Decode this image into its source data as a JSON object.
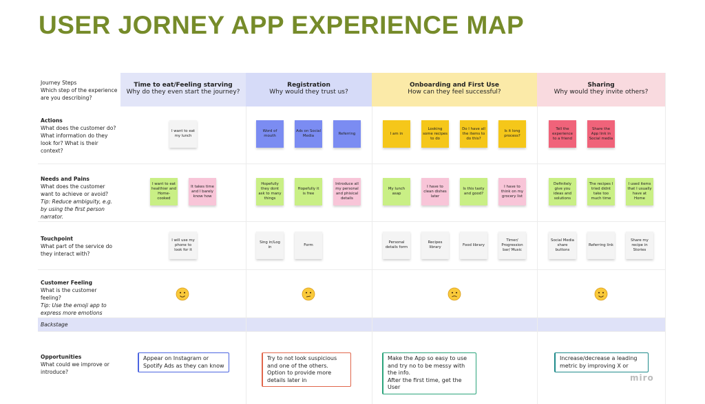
{
  "header": {
    "title": "USER JORNEY APP EXPERIENCE MAP"
  },
  "rows": [
    {
      "title": "Journey Steps",
      "question": "Which step of the experience are you describing?"
    },
    {
      "title": "Actions",
      "question": "What does the customer do? What information do they look for? What is their context?"
    },
    {
      "title": "Needs and Pains",
      "question": "What does the customer want to achieve or avoid?",
      "tip": "Tip: Reduce ambiguity, e.g. by using the first person narrator."
    },
    {
      "title": "Touchpoint",
      "question": "What part of the service do they interact with?"
    },
    {
      "title": "Customer Feeling",
      "question": "What is the customer feeling?",
      "tip": "Tip: Use the emoji app to express more emotions"
    },
    {
      "title": "Backstage"
    },
    {
      "title": "Opportunities",
      "question": "What could we improve or introduce?"
    }
  ],
  "lanes": [
    {
      "title": "Time to eat/Feeling starving",
      "subtitle": "Why do they even start the journey?",
      "color": "#e2e5f8",
      "actions": [
        {
          "text": "I want to eat my lunch",
          "color": "#f4f4f4"
        }
      ],
      "needs": [
        {
          "text": "I want to eat healthier and Home-cooked",
          "color": "#c9ef85"
        },
        {
          "text": "It takes time and I barely know how",
          "color": "#f8c5d8"
        }
      ],
      "touchpoints": [
        {
          "text": "I will use my phone to look for it",
          "color": "#f4f4f4"
        }
      ],
      "opportunity": {
        "text": "Appear on Instagram or Spotify Ads as they can know",
        "color": "#4b64e0"
      }
    },
    {
      "title": "Registration",
      "subtitle": "Why would they trust us?",
      "color": "#d6dbf8",
      "actions": [
        {
          "text": "Word of mouth",
          "color": "#7b8cf2"
        },
        {
          "text": "Ads on Social Media",
          "color": "#7b8cf2"
        },
        {
          "text": "Referring",
          "color": "#7b8cf2"
        }
      ],
      "needs": [
        {
          "text": "Hopefully they dont ask to many things",
          "color": "#c9ef85"
        },
        {
          "text": "Hopefully it is free",
          "color": "#c9ef85"
        },
        {
          "text": "Introduce all my personal and phisical details",
          "color": "#f8c5d8"
        }
      ],
      "touchpoints": [
        {
          "text": "Sing in/Log in",
          "color": "#f4f4f4"
        },
        {
          "text": "Form",
          "color": "#f4f4f4"
        }
      ],
      "opportunity": {
        "text": "Try to not look suspicious and one of the others. Option to provide more details later in",
        "color": "#e0654a"
      }
    },
    {
      "title": "Onboarding and First Use",
      "subtitle": "How can they feel successful?",
      "color": "#fbeaa8",
      "actions": [
        {
          "text": "I am in",
          "color": "#f5c71a"
        },
        {
          "text": "Looking some recipes to do",
          "color": "#f5c71a"
        },
        {
          "text": "Do I have all the items to do this?",
          "color": "#f5c71a"
        },
        {
          "text": "Is it long process?",
          "color": "#f5c71a"
        }
      ],
      "needs": [
        {
          "text": "My lunch asap",
          "color": "#c9ef85"
        },
        {
          "text": "I have to clean dishes later",
          "color": "#f8c5d8"
        },
        {
          "text": "Is this tasty and good?",
          "color": "#c9ef85"
        },
        {
          "text": "I have to think on my grocery list",
          "color": "#f8c5d8"
        }
      ],
      "touchpoints": [
        {
          "text": "Personal details form",
          "color": "#f4f4f4"
        },
        {
          "text": "Recipes library",
          "color": "#f4f4f4"
        },
        {
          "text": "Food library",
          "color": "#f4f4f4"
        },
        {
          "text": "Timer/ Progression bar/ Music",
          "color": "#f4f4f4"
        }
      ],
      "opportunity": {
        "text": "Make the App so easy to use and try no to be messy with the info.\nAfter the first time, get the User",
        "color": "#2aa37a"
      }
    },
    {
      "title": "Sharing",
      "subtitle": "Why would they invite others?",
      "color": "#f9dadf",
      "actions": [
        {
          "text": "Tell the experience to a friend",
          "color": "#f0637a"
        },
        {
          "text": "Share the App link in Social media",
          "color": "#f0637a"
        }
      ],
      "needs": [
        {
          "text": "Definitely give you ideas and solutions",
          "color": "#c9ef85"
        },
        {
          "text": "The recipes I tried didnt take too much time",
          "color": "#c9ef85"
        },
        {
          "text": "I used items that I usually have at Home",
          "color": "#c9ef85"
        }
      ],
      "touchpoints": [
        {
          "text": "Social Media share buttons",
          "color": "#f4f4f4"
        },
        {
          "text": "Referring link",
          "color": "#f4f4f4"
        },
        {
          "text": "Share my recipe in Stories",
          "color": "#f4f4f4"
        }
      ],
      "opportunity": {
        "text": "Increase/decrease a leading metric by improving X or",
        "color": "#1e8a8a"
      }
    }
  ],
  "watermark": "miro"
}
